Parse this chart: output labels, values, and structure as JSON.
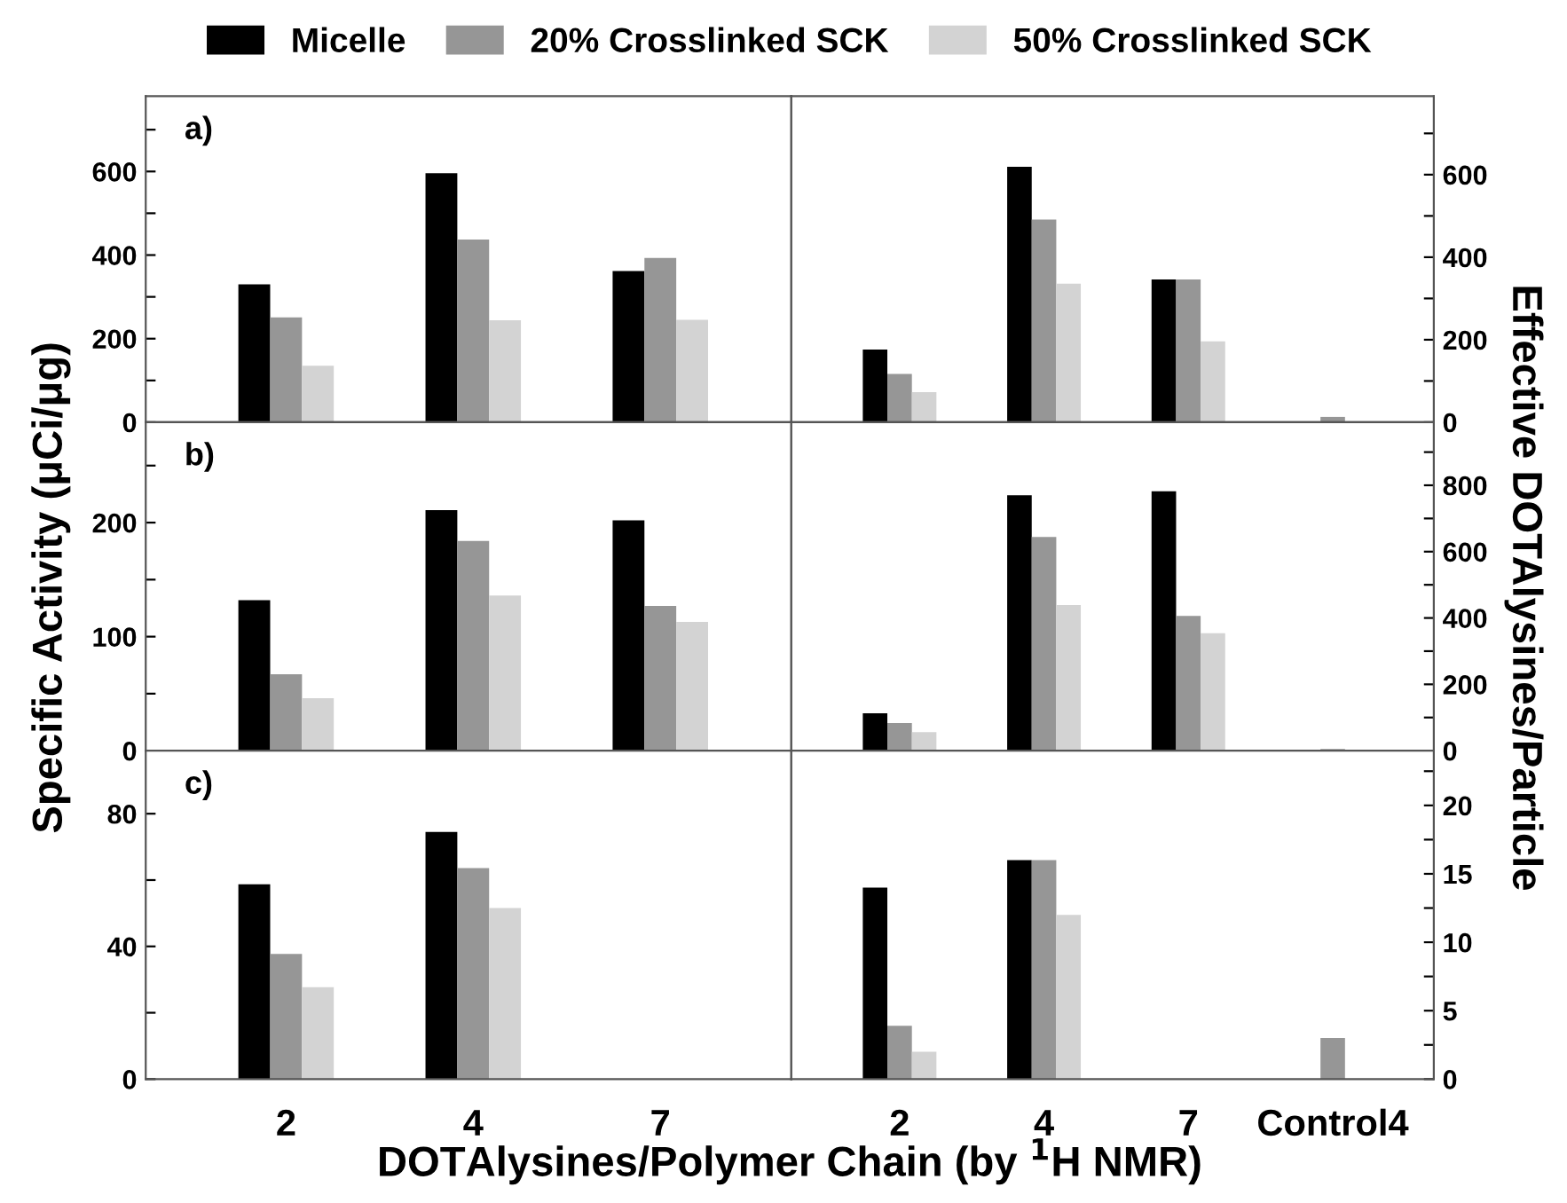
{
  "chart_data": [
    {
      "type": "bar",
      "categories": [
        null,
        null,
        null
      ],
      "legend": "top",
      "tick_labels": "y",
      "annotations": [
        "a)"
      ],
      "ylim": [
        0,
        780
      ],
      "yticks": [
        0,
        {
          "value": 100,
          "label": null
        },
        200,
        {
          "value": 300,
          "label": null
        },
        400,
        {
          "value": 500,
          "label": null
        },
        600,
        {
          "value": 700,
          "label": null
        }
      ],
      "series": [
        {
          "name": "Micelle",
          "color": "#000000",
          "values": [
            330,
            596,
            362
          ]
        },
        {
          "name": "20% Crosslinked SCK",
          "color": "#969696",
          "values": [
            251,
            437,
            393
          ]
        },
        {
          "name": "50% Crosslinked SCK",
          "color": "#d3d3d3",
          "values": [
            135,
            244,
            245
          ]
        }
      ]
    },
    {
      "type": "bar",
      "categories": [
        null,
        null,
        null,
        null
      ],
      "tick_labels": "y",
      "y2lim": [
        0,
        790
      ],
      "y2ticks": [
        0,
        {
          "value": 100,
          "label": null
        },
        200,
        {
          "value": 300,
          "label": null
        },
        400,
        {
          "value": 500,
          "label": null
        },
        600,
        {
          "value": 700,
          "label": null
        }
      ],
      "series": [
        {
          "color": "#000000",
          "axis": "y2",
          "values": [
            176,
            619,
            346,
            null
          ]
        },
        {
          "color": "#969696",
          "axis": "y2",
          "values": [
            117,
            491,
            346,
            13
          ]
        },
        {
          "color": "#d3d3d3",
          "axis": "y2",
          "values": [
            73,
            336,
            196,
            null
          ]
        }
      ]
    },
    {
      "type": "bar",
      "categories": [
        null,
        null,
        null
      ],
      "tick_labels": "y",
      "annotations": [
        "b)"
      ],
      "ylabel": "Specific Activity (μCi/μg)",
      "ylim": [
        0,
        288
      ],
      "yticks": [
        0,
        {
          "value": 50,
          "label": null
        },
        100,
        {
          "value": 150,
          "label": null
        },
        200,
        {
          "value": 250,
          "label": null
        }
      ],
      "series": [
        {
          "color": "#000000",
          "values": [
            132,
            211,
            202
          ]
        },
        {
          "color": "#969696",
          "values": [
            67,
            184,
            127
          ]
        },
        {
          "color": "#d3d3d3",
          "values": [
            46,
            136,
            113
          ]
        }
      ]
    },
    {
      "type": "bar",
      "categories": [
        null,
        null,
        null,
        null
      ],
      "tick_labels": "y",
      "y2label": "Effective DOTAlysines/Particle",
      "y2lim": [
        0,
        990
      ],
      "y2ticks": [
        0,
        {
          "value": 100,
          "label": null
        },
        200,
        {
          "value": 300,
          "label": null
        },
        400,
        {
          "value": 500,
          "label": null
        },
        600,
        {
          "value": 700,
          "label": null
        },
        800,
        {
          "value": 900,
          "label": null
        }
      ],
      "series": [
        {
          "color": "#000000",
          "axis": "y2",
          "values": [
            113,
            770,
            782,
            null
          ]
        },
        {
          "color": "#969696",
          "axis": "y2",
          "values": [
            83,
            644,
            406,
            5
          ]
        },
        {
          "color": "#d3d3d3",
          "axis": "y2",
          "values": [
            56,
            439,
            354,
            null
          ]
        }
      ]
    },
    {
      "type": "bar",
      "categories": [
        "2",
        "4",
        "7"
      ],
      "annotations": [
        "c)"
      ],
      "xlabel": "DOTAlysines/Polymer Chain (by $^{1}$H NMR)",
      "ylim": [
        0,
        99
      ],
      "yticks": [
        0,
        {
          "value": 20,
          "label": null
        },
        40,
        {
          "value": 60,
          "label": null
        },
        80
      ],
      "series": [
        {
          "color": "#000000",
          "values": [
            58.7,
            74.5,
            null
          ]
        },
        {
          "color": "#969696",
          "values": [
            37.7,
            63.6,
            null
          ]
        },
        {
          "color": "#d3d3d3",
          "values": [
            27.7,
            51.6,
            null
          ]
        }
      ]
    },
    {
      "type": "bar",
      "categories": [
        "2",
        "4",
        "7",
        "Control4"
      ],
      "y2lim": [
        0,
        24
      ],
      "y2ticks": [
        0,
        {
          "value": 2.5,
          "label": null
        },
        5,
        {
          "value": 7.5,
          "label": null
        },
        10,
        {
          "value": 12.5,
          "label": null
        },
        15,
        {
          "value": 17.5,
          "label": null
        },
        20,
        {
          "value": 22.5,
          "label": null
        }
      ],
      "series": [
        {
          "color": "#000000",
          "axis": "y2",
          "values": [
            14,
            16,
            null,
            null
          ]
        },
        {
          "color": "#969696",
          "axis": "y2",
          "values": [
            3.9,
            16,
            null,
            3
          ]
        },
        {
          "color": "#d3d3d3",
          "axis": "y2",
          "values": [
            2,
            12,
            null,
            null
          ]
        }
      ]
    }
  ]
}
